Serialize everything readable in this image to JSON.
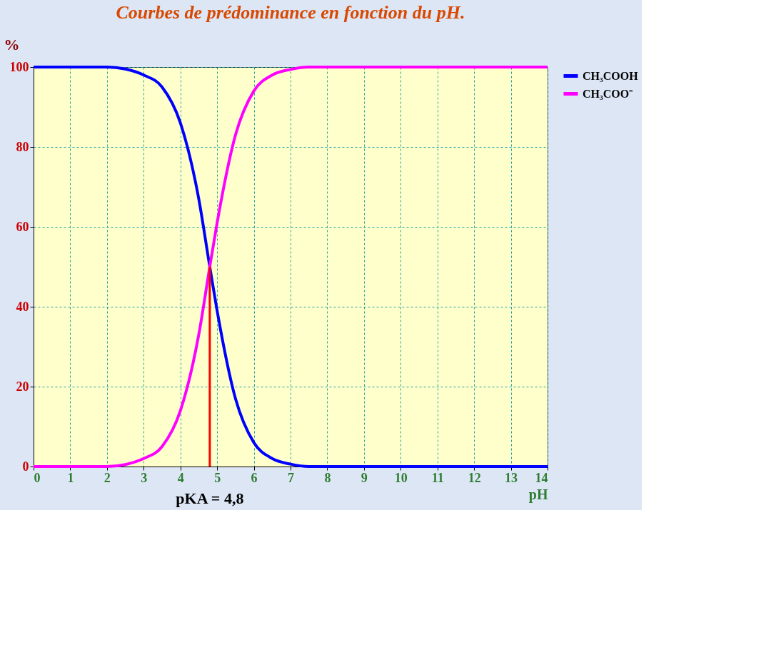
{
  "chart_data": {
    "type": "line",
    "title": "Courbes de prédominance en fonction du pH.",
    "xlabel": "pH",
    "ylabel": "%",
    "x": [
      0,
      0.5,
      1,
      1.5,
      2,
      2.5,
      3,
      3.5,
      4,
      4.5,
      4.8,
      5,
      5.5,
      6,
      6.5,
      7,
      7.5,
      8,
      9,
      10,
      11,
      12,
      13,
      14
    ],
    "series": [
      {
        "name": "CH₃COOH",
        "color": "#0000ff",
        "values": [
          100,
          100,
          100,
          100,
          100,
          99.5,
          98,
          95,
          86,
          67,
          50,
          39,
          17,
          6,
          2,
          0.6,
          0,
          0,
          0,
          0,
          0,
          0,
          0,
          0
        ]
      },
      {
        "name": "CH₃COO⁻",
        "color": "#ff00ff",
        "values": [
          0,
          0,
          0,
          0,
          0,
          0.5,
          2,
          5,
          14,
          33,
          50,
          61,
          83,
          94,
          98,
          99.4,
          100,
          100,
          100,
          100,
          100,
          100,
          100,
          100
        ]
      }
    ],
    "xlim": [
      0,
      14
    ],
    "ylim": [
      0,
      100
    ],
    "xticks": [
      0,
      1,
      2,
      3,
      4,
      5,
      6,
      7,
      8,
      9,
      10,
      11,
      12,
      13,
      14
    ],
    "yticks": [
      0,
      20,
      40,
      60,
      80,
      100
    ],
    "ref_lines": [
      {
        "axis": "x",
        "value": 4.8,
        "label": "pKA = 4,8",
        "color": "#ff0000"
      }
    ],
    "grid": true,
    "legend": "right",
    "line_style": "solid"
  }
}
